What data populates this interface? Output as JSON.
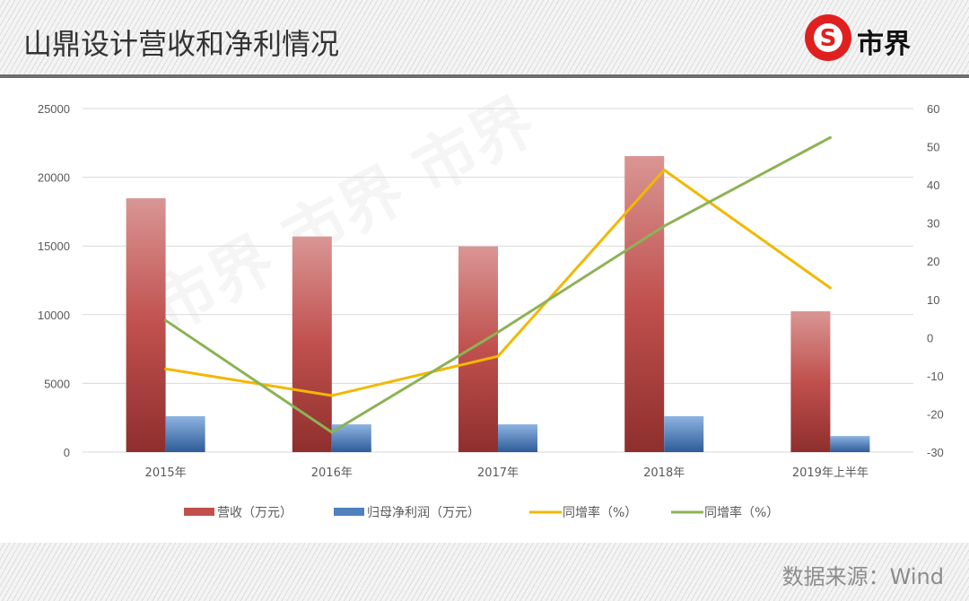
{
  "header": {
    "title": "山鼎设计营收和净利情况",
    "logo_text": "市界"
  },
  "footer": {
    "source": "数据来源：Wind"
  },
  "colors": {
    "revenue": "#c0504d",
    "profit": "#4f81bd",
    "yoy1": "#f2b800",
    "yoy2": "#8db255"
  },
  "chart_data": {
    "type": "bar",
    "title": "山鼎设计营收和净利情况",
    "categories": [
      "2015年",
      "2016年",
      "2017年",
      "2018年",
      "2019年上半年"
    ],
    "y_left": {
      "min": 0,
      "max": 25000,
      "ticks": [
        "0",
        "5000",
        "10000",
        "15000",
        "20000",
        "25000"
      ]
    },
    "y_right": {
      "min": -30,
      "max": 60,
      "ticks": [
        "-30",
        "-20",
        "-10",
        "0",
        "10",
        "20",
        "30",
        "40",
        "50",
        "60"
      ]
    },
    "grid": true,
    "legend_position": "bottom",
    "series": [
      {
        "name": "营收（万元）",
        "kind": "bar",
        "axis": "left",
        "values": [
          18470,
          15690,
          14970,
          21540,
          10250
        ]
      },
      {
        "name": "归母净利润（万元）",
        "kind": "bar",
        "axis": "left",
        "values": [
          2610,
          2020,
          2020,
          2610,
          1170
        ]
      },
      {
        "name": "同增率（%）",
        "kind": "line",
        "axis": "right",
        "values": [
          -8.2,
          -15.2,
          -4.9,
          43.9,
          13.0
        ]
      },
      {
        "name": "同增率（%）",
        "kind": "line",
        "axis": "right",
        "values": [
          4.5,
          -24.8,
          1.4,
          29.2,
          52.4
        ]
      }
    ]
  }
}
